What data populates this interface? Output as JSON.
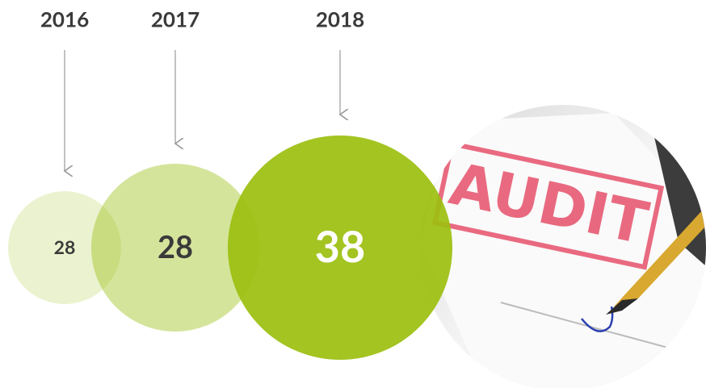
{
  "items": [
    {
      "year": "2016",
      "value": "28"
    },
    {
      "year": "2017",
      "value": "28"
    },
    {
      "year": "2018",
      "value": "38"
    }
  ],
  "image": {
    "label": "AUDIT"
  }
}
